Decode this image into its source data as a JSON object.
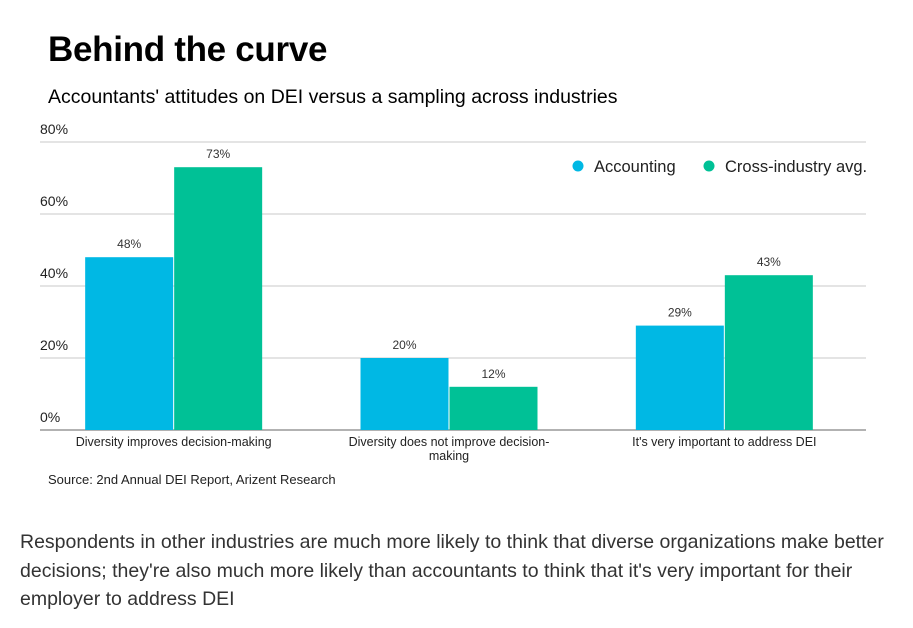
{
  "title": "Behind the curve",
  "subtitle": "Accountants' attitudes on DEI versus a sampling across industries",
  "source": "Source: 2nd Annual DEI Report, Arizent Research",
  "caption": "Respondents in other industries are much more likely to think that diverse organizations make better decisions; they're also much more likely than accountants to think that it's very important for their employer to address DEI",
  "chart_data": {
    "type": "bar",
    "title": "Behind the curve",
    "subtitle": "Accountants' attitudes on DEI versus a sampling across industries",
    "categories": [
      [
        "Diversity improves decision-making"
      ],
      [
        "Diversity does not improve decision-",
        "making"
      ],
      [
        "It's very important to address DEI"
      ]
    ],
    "series": [
      {
        "name": "Accounting",
        "color": "#00b8e4",
        "values": [
          48,
          20,
          29
        ],
        "labels": [
          "48%",
          "20%",
          "29%"
        ]
      },
      {
        "name": "Cross-industry avg.",
        "color": "#00c196",
        "values": [
          73,
          12,
          43
        ],
        "labels": [
          "73%",
          "12%",
          "43%"
        ]
      }
    ],
    "ylim": [
      0,
      80
    ],
    "yticks": [
      0,
      20,
      40,
      60,
      80
    ],
    "ytick_labels": [
      "0%",
      "20%",
      "40%",
      "60%",
      "80%"
    ],
    "grid": true,
    "legend_position": "top-right"
  }
}
